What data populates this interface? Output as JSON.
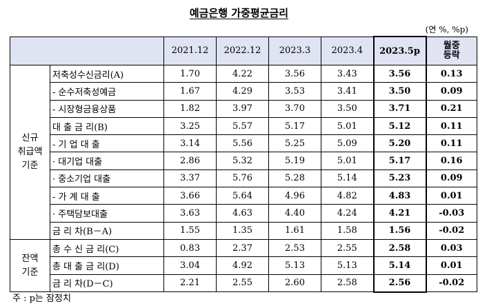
{
  "title": "예금은행 가중평균금리",
  "unit": "(연 %, %p)",
  "note": "주 : p는 잠정치",
  "columns": [
    "2021.12",
    "2022.12",
    "2023.3",
    "2023.4",
    "2023.5p"
  ],
  "change_header": [
    "월중",
    "등락"
  ],
  "categories": {
    "new": [
      "신규",
      "취급액",
      "기준"
    ],
    "balance": [
      "잔액",
      "기준"
    ]
  },
  "rows": [
    {
      "label": "저축성수신금리(A)",
      "values": [
        "1.70",
        "4.22",
        "3.56",
        "3.43",
        "3.56",
        "0.13"
      ]
    },
    {
      "label": "- 순수저축성예금",
      "values": [
        "1.67",
        "4.29",
        "3.53",
        "3.41",
        "3.50",
        "0.09"
      ]
    },
    {
      "label": "- 시장형금융상품",
      "values": [
        "1.82",
        "3.97",
        "3.70",
        "3.50",
        "3.71",
        "0.21"
      ]
    },
    {
      "label": "대 출 금 리(B)",
      "values": [
        "3.25",
        "5.57",
        "5.17",
        "5.01",
        "5.12",
        "0.11"
      ]
    },
    {
      "label": "- 기 업 대 출",
      "values": [
        "3.14",
        "5.56",
        "5.25",
        "5.09",
        "5.20",
        "0.11"
      ]
    },
    {
      "label": "· 대기업 대출",
      "values": [
        "2.86",
        "5.32",
        "5.19",
        "5.01",
        "5.17",
        "0.16"
      ]
    },
    {
      "label": "· 중소기업 대출",
      "values": [
        "3.37",
        "5.76",
        "5.28",
        "5.14",
        "5.23",
        "0.09"
      ]
    },
    {
      "label": "- 가 계 대 출",
      "values": [
        "3.66",
        "5.64",
        "4.96",
        "4.82",
        "4.83",
        "0.01"
      ]
    },
    {
      "label": "· 주택담보대출",
      "values": [
        "3.63",
        "4.63",
        "4.40",
        "4.24",
        "4.21",
        "-0.03"
      ]
    },
    {
      "label": "금 리 차(B－A)",
      "values": [
        "1.55",
        "1.35",
        "1.61",
        "1.58",
        "1.56",
        "-0.02"
      ]
    },
    {
      "label": "총 수 신 금 리(C)",
      "values": [
        "0.83",
        "2.37",
        "2.53",
        "2.55",
        "2.58",
        "0.03"
      ]
    },
    {
      "label": "총 대 출 금 리(D)",
      "values": [
        "3.04",
        "4.92",
        "5.13",
        "5.13",
        "5.14",
        "0.01"
      ]
    },
    {
      "label": "금 리 차(D－C)",
      "values": [
        "2.21",
        "2.55",
        "2.60",
        "2.58",
        "2.56",
        "-0.02"
      ]
    }
  ]
}
